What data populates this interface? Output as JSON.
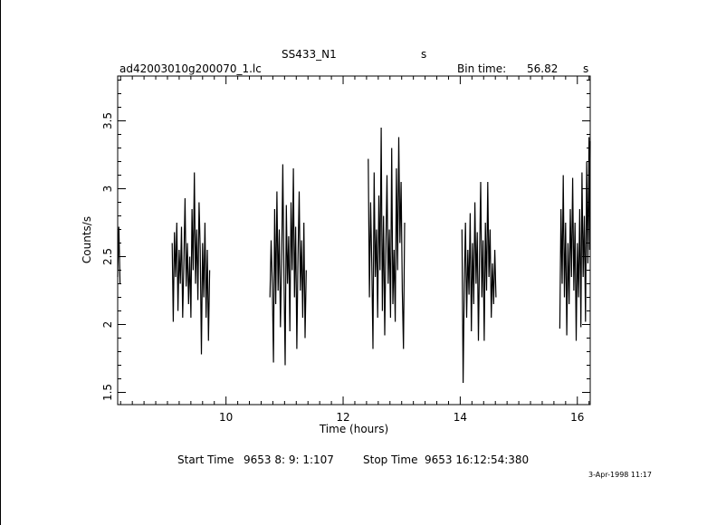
{
  "header": {
    "object_name": "SS433_N1",
    "object_unit": "s",
    "filename": "ad42003010g200070_1.lc",
    "bin_time_label": "Bin time:",
    "bin_time_value": "56.82",
    "bin_time_unit": "s"
  },
  "footer": {
    "start_label": "Start Time",
    "start_value": "9653  8: 9: 1:107",
    "stop_label": "Stop Time",
    "stop_value": "9653 16:12:54:380",
    "date_stamp": "3-Apr-1998 11:17"
  },
  "chart_data": {
    "type": "line",
    "title": "SS433_N1",
    "xlabel": "Time (hours)",
    "ylabel": "Counts/s",
    "xlim": [
      8.15,
      16.22
    ],
    "ylim": [
      1.41,
      3.83
    ],
    "xticks": [
      10,
      12,
      14,
      16
    ],
    "yticks": [
      1.5,
      2,
      2.5,
      3,
      3.5
    ],
    "xtick_labels": [
      "10",
      "12",
      "14",
      "16"
    ],
    "ytick_labels": [
      "1.5",
      "2",
      "2.5",
      "3",
      "3.5"
    ],
    "grid": false,
    "series": [
      {
        "segment": 1,
        "points": [
          [
            8.15,
            2.35
          ],
          [
            8.17,
            2.72
          ],
          [
            8.19,
            2.3
          ]
        ]
      },
      {
        "segment": 2,
        "points": [
          [
            9.08,
            2.6
          ],
          [
            9.1,
            2.02
          ],
          [
            9.12,
            2.68
          ],
          [
            9.14,
            2.35
          ],
          [
            9.16,
            2.75
          ],
          [
            9.18,
            2.1
          ],
          [
            9.2,
            2.55
          ],
          [
            9.22,
            2.3
          ],
          [
            9.24,
            2.72
          ],
          [
            9.26,
            2.05
          ],
          [
            9.28,
            2.45
          ],
          [
            9.3,
            2.93
          ],
          [
            9.32,
            2.28
          ],
          [
            9.34,
            2.6
          ],
          [
            9.36,
            2.15
          ],
          [
            9.38,
            2.5
          ],
          [
            9.4,
            2.05
          ],
          [
            9.42,
            2.85
          ],
          [
            9.44,
            2.4
          ],
          [
            9.46,
            3.12
          ],
          [
            9.48,
            2.3
          ],
          [
            9.5,
            2.7
          ],
          [
            9.52,
            2.18
          ],
          [
            9.54,
            2.9
          ],
          [
            9.56,
            2.55
          ],
          [
            9.58,
            1.78
          ],
          [
            9.6,
            2.6
          ],
          [
            9.62,
            2.2
          ],
          [
            9.64,
            2.75
          ],
          [
            9.66,
            2.05
          ],
          [
            9.68,
            2.55
          ],
          [
            9.7,
            1.88
          ],
          [
            9.72,
            2.4
          ]
        ]
      },
      {
        "segment": 3,
        "points": [
          [
            10.75,
            2.2
          ],
          [
            10.77,
            2.62
          ],
          [
            10.79,
            2.3
          ],
          [
            10.81,
            1.72
          ],
          [
            10.83,
            2.85
          ],
          [
            10.85,
            2.15
          ],
          [
            10.87,
            2.98
          ],
          [
            10.89,
            2.25
          ],
          [
            10.91,
            2.7
          ],
          [
            10.93,
            1.98
          ],
          [
            10.95,
            2.45
          ],
          [
            10.97,
            3.18
          ],
          [
            10.99,
            2.35
          ],
          [
            11.01,
            1.7
          ],
          [
            11.03,
            2.88
          ],
          [
            11.05,
            2.3
          ],
          [
            11.07,
            2.65
          ],
          [
            11.09,
            1.95
          ],
          [
            11.11,
            2.9
          ],
          [
            11.13,
            2.4
          ],
          [
            11.15,
            3.15
          ],
          [
            11.17,
            2.2
          ],
          [
            11.19,
            2.72
          ],
          [
            11.21,
            1.82
          ],
          [
            11.23,
            2.5
          ],
          [
            11.25,
            2.98
          ],
          [
            11.27,
            2.25
          ],
          [
            11.29,
            2.62
          ],
          [
            11.31,
            2.05
          ],
          [
            11.33,
            2.75
          ],
          [
            11.35,
            1.9
          ],
          [
            11.37,
            2.4
          ]
        ]
      },
      {
        "segment": 4,
        "points": [
          [
            12.43,
            3.22
          ],
          [
            12.45,
            2.2
          ],
          [
            12.47,
            2.9
          ],
          [
            12.49,
            2.45
          ],
          [
            12.51,
            1.82
          ],
          [
            12.53,
            3.12
          ],
          [
            12.55,
            2.35
          ],
          [
            12.57,
            2.7
          ],
          [
            12.59,
            2.05
          ],
          [
            12.61,
            2.95
          ],
          [
            12.63,
            2.4
          ],
          [
            12.65,
            3.45
          ],
          [
            12.67,
            2.1
          ],
          [
            12.69,
            2.8
          ],
          [
            12.71,
            1.92
          ],
          [
            12.73,
            2.6
          ],
          [
            12.75,
            3.1
          ],
          [
            12.77,
            2.3
          ],
          [
            12.79,
            2.7
          ],
          [
            12.81,
            2.05
          ],
          [
            12.83,
            3.3
          ],
          [
            12.85,
            2.15
          ],
          [
            12.87,
            2.55
          ],
          [
            12.89,
            2.02
          ],
          [
            12.91,
            3.15
          ],
          [
            12.93,
            2.4
          ],
          [
            12.95,
            3.38
          ],
          [
            12.97,
            2.6
          ],
          [
            12.99,
            3.05
          ],
          [
            13.01,
            2.25
          ],
          [
            13.03,
            1.82
          ],
          [
            13.05,
            2.75
          ]
        ]
      },
      {
        "segment": 5,
        "points": [
          [
            14.03,
            2.7
          ],
          [
            14.05,
            1.57
          ],
          [
            14.07,
            2.3
          ],
          [
            14.09,
            2.75
          ],
          [
            14.11,
            2.05
          ],
          [
            14.13,
            2.55
          ],
          [
            14.15,
            2.22
          ],
          [
            14.17,
            2.82
          ],
          [
            14.19,
            1.95
          ],
          [
            14.21,
            2.6
          ],
          [
            14.23,
            2.15
          ],
          [
            14.25,
            2.9
          ],
          [
            14.27,
            2.3
          ],
          [
            14.29,
            2.68
          ],
          [
            14.31,
            1.88
          ],
          [
            14.33,
            2.48
          ],
          [
            14.35,
            3.05
          ],
          [
            14.37,
            2.2
          ],
          [
            14.39,
            2.62
          ],
          [
            14.41,
            1.88
          ],
          [
            14.43,
            2.75
          ],
          [
            14.45,
            2.25
          ],
          [
            14.47,
            3.05
          ],
          [
            14.49,
            2.35
          ],
          [
            14.51,
            2.7
          ],
          [
            14.53,
            2.05
          ],
          [
            14.55,
            2.45
          ],
          [
            14.57,
            2.15
          ],
          [
            14.59,
            2.55
          ],
          [
            14.61,
            2.2
          ]
        ]
      },
      {
        "segment": 6,
        "points": [
          [
            15.7,
            1.97
          ],
          [
            15.72,
            2.85
          ],
          [
            15.74,
            2.3
          ],
          [
            15.76,
            3.1
          ],
          [
            15.78,
            2.2
          ],
          [
            15.8,
            2.75
          ],
          [
            15.82,
            1.92
          ],
          [
            15.84,
            2.6
          ],
          [
            15.86,
            2.15
          ],
          [
            15.88,
            2.85
          ],
          [
            15.9,
            2.35
          ],
          [
            15.92,
            3.08
          ],
          [
            15.94,
            2.25
          ],
          [
            15.96,
            2.75
          ],
          [
            15.98,
            1.88
          ],
          [
            16.0,
            2.6
          ],
          [
            16.02,
            2.2
          ],
          [
            16.04,
            2.85
          ],
          [
            16.06,
            1.98
          ],
          [
            16.08,
            3.12
          ],
          [
            16.1,
            2.35
          ],
          [
            16.12,
            2.8
          ],
          [
            16.14,
            2.02
          ],
          [
            16.16,
            3.2
          ],
          [
            16.18,
            2.45
          ],
          [
            16.2,
            3.38
          ],
          [
            16.21,
            2.55
          ],
          [
            16.22,
            3.35
          ]
        ]
      }
    ]
  }
}
